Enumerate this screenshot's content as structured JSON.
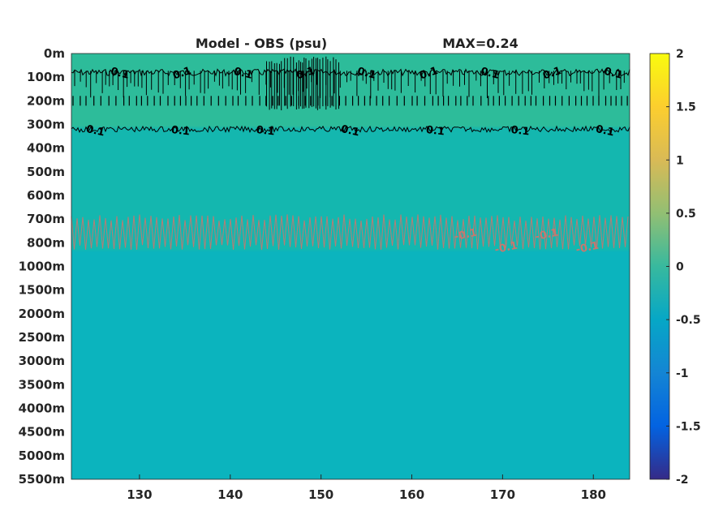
{
  "chart_data": {
    "type": "heatmap",
    "title": "Model - OBS (psu)",
    "subtitle": "MAX=0.24",
    "xlabel": "",
    "ylabel": "",
    "x_ticks": [
      "130",
      "140",
      "150",
      "160",
      "170",
      "180"
    ],
    "x_tick_values": [
      130,
      140,
      150,
      160,
      170,
      180
    ],
    "xlim": [
      122.5,
      184
    ],
    "y_ticks": [
      "0m",
      "100m",
      "200m",
      "300m",
      "400m",
      "500m",
      "600m",
      "700m",
      "800m",
      "1000m",
      "1500m",
      "2000m",
      "2500m",
      "3000m",
      "3500m",
      "4000m",
      "4500m",
      "5000m",
      "5500m"
    ],
    "colorbar": {
      "ticks": [
        "2",
        "1.5",
        "1",
        "0.5",
        "0",
        "-0.5",
        "-1",
        "-1.5",
        "-2"
      ],
      "tick_values": [
        2,
        1.5,
        1,
        0.5,
        0,
        -0.5,
        -1,
        -1.5,
        -2
      ],
      "range": [
        -2,
        2
      ],
      "colormap": "parula"
    },
    "field_bands": [
      {
        "y_from": 0,
        "y_to": 3.2,
        "value": 0.13,
        "color": "#2dbc9a"
      },
      {
        "y_from": 3.2,
        "y_to": 8.4,
        "value": 0.05,
        "color": "#14b7af"
      },
      {
        "y_from": 8.4,
        "y_to": 18,
        "value": 0.0,
        "color": "#0bb4be"
      }
    ],
    "positive_contours": [
      {
        "level": 0.1,
        "y_center": 0.8,
        "labels": [
          "0.1",
          "0.1",
          "0.1",
          "0.1",
          "0.1",
          "0.1",
          "0.1",
          "0.1",
          "0.1"
        ]
      },
      {
        "level": 0.1,
        "y_center": 3.2,
        "labels": [
          "0.1",
          "0.1",
          "0.1",
          "0.1",
          "0.1",
          "0.1",
          "0.1"
        ]
      }
    ],
    "negative_contours": [
      {
        "level": -0.1,
        "y_center": 8.0,
        "labels": [
          "-0.1",
          "-0.1",
          "-0.1",
          "-0.1"
        ]
      }
    ],
    "colors": {
      "positive_contour": "#000000",
      "negative_contour": "#c8776f",
      "axis": "#262626"
    }
  }
}
